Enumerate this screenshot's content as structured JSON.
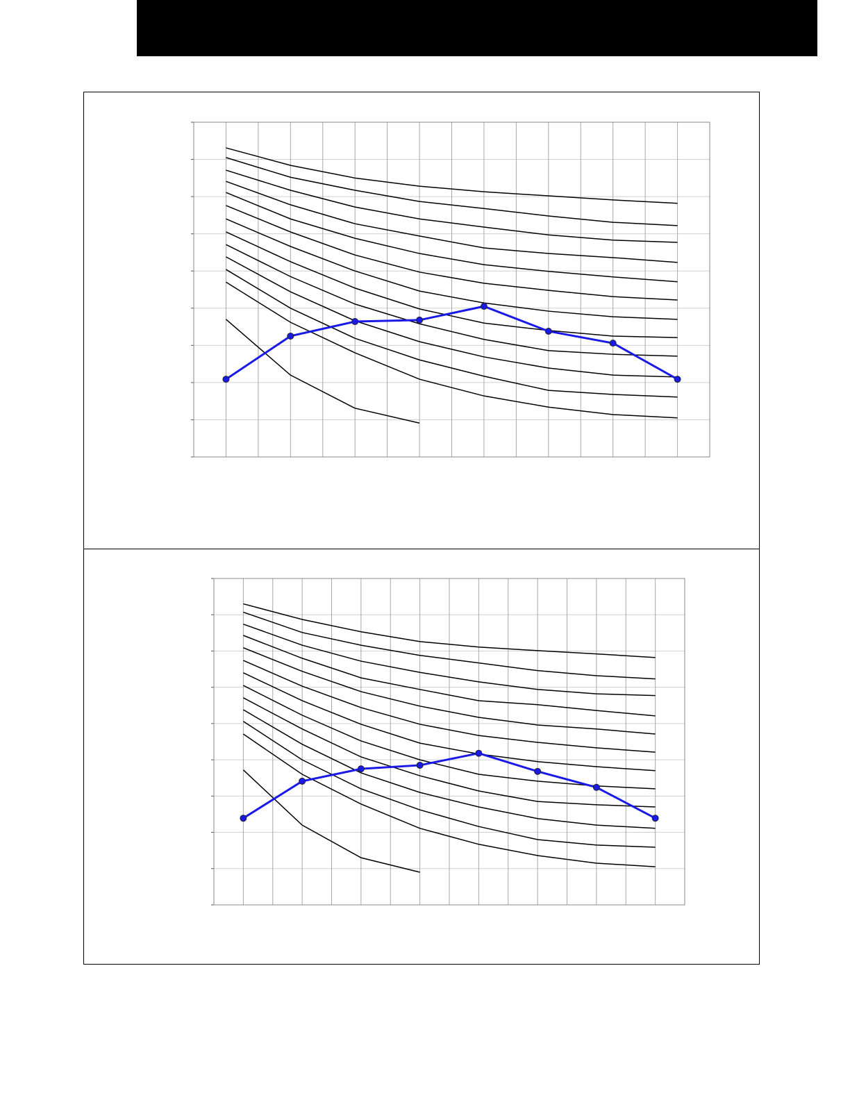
{
  "chart_data": [
    {
      "type": "line",
      "xlim": [
        0.5,
        8.5
      ],
      "xticks": [
        0.5,
        1,
        1.5,
        2,
        2.5,
        3,
        3.5,
        4,
        4.5,
        5,
        5.5,
        6,
        6.5,
        7,
        7.5,
        8,
        8.5
      ],
      "ylim": [
        0,
        9
      ],
      "yticks": [
        0,
        1,
        2,
        3,
        4,
        5,
        6,
        7,
        8,
        9
      ],
      "grid": true,
      "x": [
        1,
        2,
        3,
        4,
        5,
        6,
        7,
        8
      ],
      "series": [
        {
          "color": "#000000",
          "values": [
            8.31,
            7.84,
            7.5,
            7.28,
            7.13,
            7.02,
            6.91,
            6.82
          ]
        },
        {
          "color": "#000000",
          "values": [
            8.05,
            7.52,
            7.17,
            6.87,
            6.68,
            6.48,
            6.31,
            6.22
          ]
        },
        {
          "color": "#000000",
          "values": [
            7.71,
            7.17,
            6.72,
            6.4,
            6.18,
            5.97,
            5.83,
            5.77
          ]
        },
        {
          "color": "#000000",
          "values": [
            7.41,
            6.78,
            6.27,
            5.94,
            5.62,
            5.47,
            5.36,
            5.23
          ]
        },
        {
          "color": "#000000",
          "values": [
            7.11,
            6.4,
            5.88,
            5.47,
            5.17,
            4.99,
            4.84,
            4.71
          ]
        },
        {
          "color": "#000000",
          "values": [
            6.76,
            6.05,
            5.43,
            4.97,
            4.67,
            4.48,
            4.31,
            4.22
          ]
        },
        {
          "color": "#000000",
          "values": [
            6.4,
            5.66,
            5.0,
            4.46,
            4.14,
            3.92,
            3.77,
            3.7
          ]
        },
        {
          "color": "#000000",
          "values": [
            6.05,
            5.25,
            4.54,
            3.98,
            3.6,
            3.4,
            3.25,
            3.21
          ]
        },
        {
          "color": "#000000",
          "values": [
            5.71,
            4.85,
            4.11,
            3.58,
            3.16,
            2.86,
            2.76,
            2.71
          ]
        },
        {
          "color": "#000000",
          "values": [
            5.38,
            4.44,
            3.66,
            3.1,
            2.69,
            2.39,
            2.2,
            2.15
          ]
        },
        {
          "color": "#000000",
          "values": [
            5.04,
            4.0,
            3.19,
            2.61,
            2.17,
            1.79,
            1.68,
            1.61
          ]
        },
        {
          "color": "#000000",
          "values": [
            4.7,
            3.62,
            2.8,
            2.09,
            1.64,
            1.34,
            1.14,
            1.05
          ]
        },
        {
          "color": "#000000",
          "values": [
            3.7,
            2.2,
            1.31,
            0.91,
            null,
            null,
            null,
            null
          ]
        },
        {
          "color": "#1a1ae6",
          "marker": "circle",
          "values": [
            2.09,
            3.25,
            3.64,
            3.68,
            4.05,
            3.38,
            3.06,
            2.09
          ]
        }
      ]
    },
    {
      "type": "line",
      "xlim": [
        0.5,
        8.5
      ],
      "xticks": [
        0.5,
        1,
        1.5,
        2,
        2.5,
        3,
        3.5,
        4,
        4.5,
        5,
        5.5,
        6,
        6.5,
        7,
        7.5,
        8,
        8.5
      ],
      "ylim": [
        0,
        9
      ],
      "yticks": [
        0,
        1,
        2,
        3,
        4,
        5,
        6,
        7,
        8,
        9
      ],
      "grid": true,
      "x": [
        1,
        2,
        3,
        4,
        5,
        6,
        7,
        8
      ],
      "series": [
        {
          "color": "#000000",
          "values": [
            8.3,
            7.87,
            7.53,
            7.26,
            7.11,
            7.01,
            6.92,
            6.82
          ]
        },
        {
          "color": "#000000",
          "values": [
            8.07,
            7.51,
            7.16,
            6.88,
            6.67,
            6.46,
            6.32,
            6.23
          ]
        },
        {
          "color": "#000000",
          "values": [
            7.74,
            7.16,
            6.72,
            6.41,
            6.15,
            5.94,
            5.82,
            5.77
          ]
        },
        {
          "color": "#000000",
          "values": [
            7.43,
            6.8,
            6.26,
            5.94,
            5.63,
            5.52,
            5.36,
            5.21
          ]
        },
        {
          "color": "#000000",
          "values": [
            7.09,
            6.44,
            5.88,
            5.48,
            5.17,
            4.96,
            4.85,
            4.71
          ]
        },
        {
          "color": "#000000",
          "values": [
            6.74,
            6.03,
            5.44,
            4.98,
            4.67,
            4.48,
            4.33,
            4.21
          ]
        },
        {
          "color": "#000000",
          "values": [
            6.4,
            5.63,
            4.98,
            4.46,
            4.16,
            3.95,
            3.81,
            3.7
          ]
        },
        {
          "color": "#000000",
          "values": [
            6.05,
            5.23,
            4.52,
            4.0,
            3.6,
            3.41,
            3.28,
            3.2
          ]
        },
        {
          "color": "#000000",
          "values": [
            5.71,
            4.85,
            4.08,
            3.56,
            3.14,
            2.85,
            2.76,
            2.7
          ]
        },
        {
          "color": "#000000",
          "values": [
            5.38,
            4.43,
            3.64,
            3.1,
            2.7,
            2.38,
            2.2,
            2.11
          ]
        },
        {
          "color": "#000000",
          "values": [
            5.06,
            4.0,
            3.2,
            2.62,
            2.16,
            1.8,
            1.65,
            1.59
          ]
        },
        {
          "color": "#000000",
          "values": [
            4.71,
            3.6,
            2.78,
            2.11,
            1.67,
            1.36,
            1.15,
            1.05
          ]
        },
        {
          "color": "#000000",
          "values": [
            3.72,
            2.2,
            1.3,
            0.9,
            null,
            null,
            null,
            null
          ]
        },
        {
          "color": "#1a1ae6",
          "marker": "circle",
          "values": [
            2.39,
            3.41,
            3.75,
            3.85,
            4.18,
            3.68,
            3.24,
            2.39
          ]
        }
      ]
    }
  ]
}
